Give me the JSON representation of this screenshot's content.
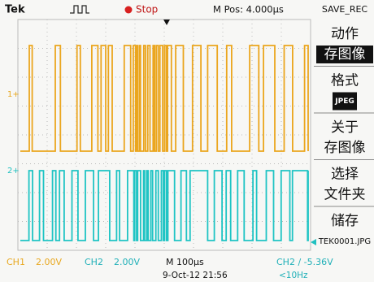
{
  "header": {
    "brand": "Tek",
    "status": "Stop",
    "position": "M Pos: 4.000µs",
    "menu_title": "SAVE_REC"
  },
  "markers": {
    "ch1": "1+",
    "ch2": "2+"
  },
  "menu": [
    [
      "动作",
      "存图像"
    ],
    [
      "格式",
      "JPEG"
    ],
    [
      "关于",
      "存图像"
    ],
    [
      "选择",
      "文件夹"
    ],
    [
      "储存",
      "TEK0001.JPG"
    ]
  ],
  "footer": {
    "ch1_label": "CH1",
    "ch1_scale": "2.00V",
    "ch2_label": "CH2",
    "ch2_scale": "2.00V",
    "timebase": "M 100µs",
    "trigger": "CH2 ∕ -5.36V",
    "date": "9-Oct-12 21:56",
    "frequency": "<10Hz"
  }
}
